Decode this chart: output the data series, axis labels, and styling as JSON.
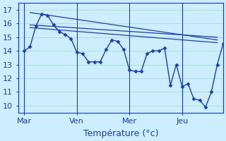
{
  "background_color": "#cceeff",
  "grid_color": "#aaddcc",
  "line_color": "#1a3fbf",
  "xlabel": "Température (°c)",
  "xlabel_fontsize": 9,
  "tick_fontsize": 8,
  "ylim": [
    9.5,
    17.5
  ],
  "yticks": [
    10,
    11,
    12,
    13,
    14,
    15,
    16,
    17
  ],
  "day_labels": [
    "Mar",
    "Ven",
    "Mer",
    "Jeu"
  ],
  "day_positions": [
    0,
    9,
    18,
    27
  ],
  "vline_positions": [
    0,
    9,
    18,
    27
  ],
  "xlim": [
    -1,
    34
  ],
  "series1_y": [
    14.0,
    14.3,
    15.8,
    16.7,
    16.6,
    15.9,
    15.4,
    15.2,
    14.9,
    13.9,
    13.8,
    13.2,
    13.2,
    13.2,
    14.1,
    14.8,
    14.7,
    14.1,
    12.6,
    12.5,
    12.5,
    13.8,
    14.0,
    14.0,
    14.2,
    11.5,
    13.0,
    11.4,
    11.6,
    10.5,
    10.4,
    9.9,
    11.0,
    13.0,
    14.5
  ],
  "trend_lines": [
    {
      "x": [
        1,
        33
      ],
      "y": [
        16.8,
        14.8
      ]
    },
    {
      "x": [
        1,
        33
      ],
      "y": [
        15.9,
        15.0
      ]
    },
    {
      "x": [
        1,
        33
      ],
      "y": [
        15.7,
        14.6
      ]
    }
  ]
}
